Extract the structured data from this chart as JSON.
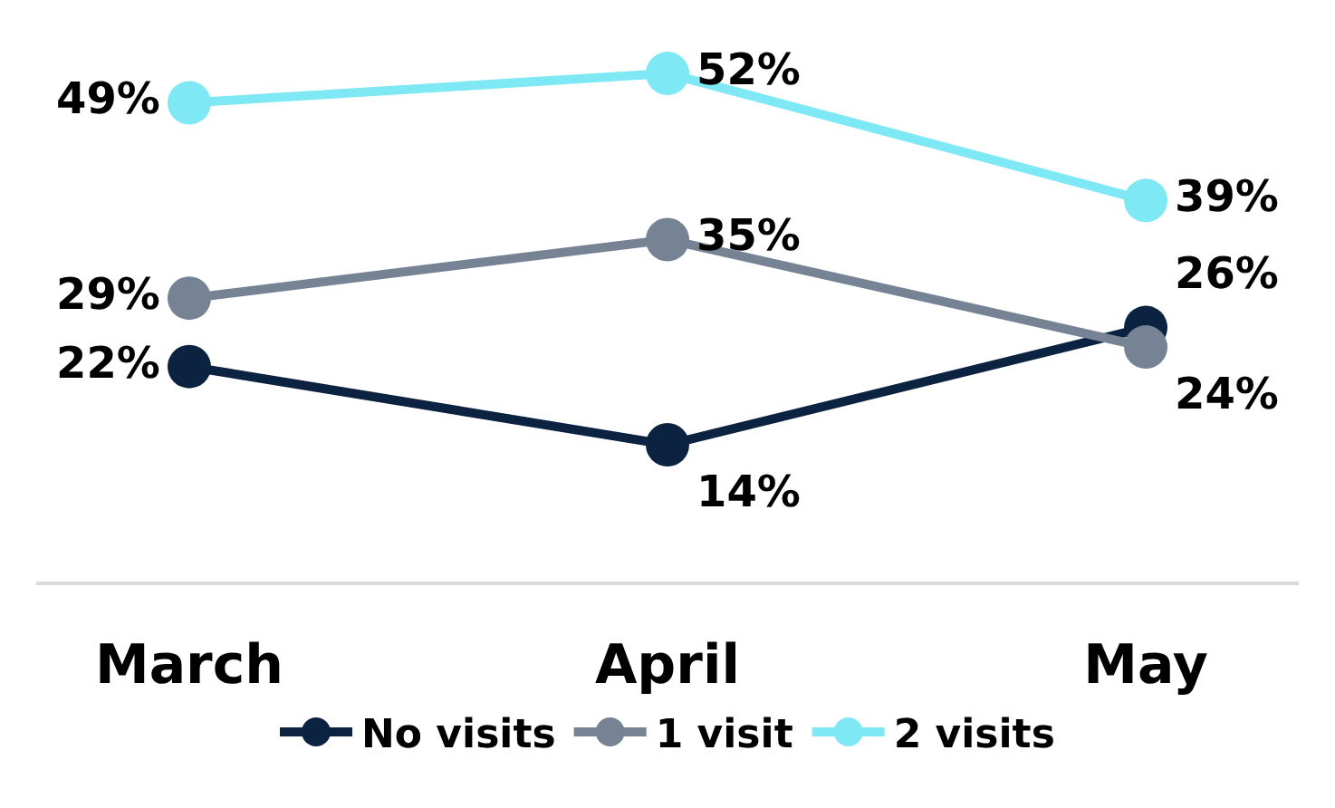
{
  "chart_data": {
    "type": "line",
    "categories": [
      "March",
      "April",
      "May"
    ],
    "series": [
      {
        "name": "No visits",
        "color": "#0b2240",
        "values": [
          22,
          14,
          26
        ],
        "value_labels": [
          "22%",
          "14%",
          "26%"
        ]
      },
      {
        "name": "1 visit",
        "color": "#768394",
        "values": [
          29,
          35,
          24
        ],
        "value_labels": [
          "29%",
          "35%",
          "24%"
        ]
      },
      {
        "name": "2 visits",
        "color": "#7ee8f5",
        "values": [
          49,
          52,
          39
        ],
        "value_labels": [
          "49%",
          "52%",
          "39%"
        ]
      }
    ],
    "tick_labels": "x",
    "legend": "bottom",
    "marker": "circle",
    "line_style": "solid"
  }
}
